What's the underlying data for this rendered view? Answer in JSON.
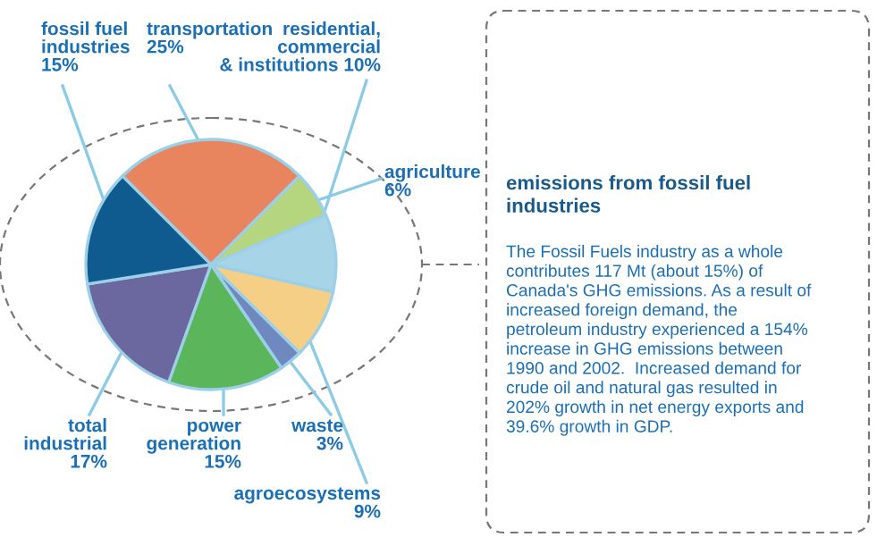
{
  "chart_data": [
    {
      "type": "pie",
      "categories": [
        "transportation",
        "agriculture",
        "residential,\ncommercial\n& institutions",
        "agroecosystems",
        "waste",
        "power\ngeneration",
        "total\nindustrial",
        "fossil fuel\nindustries"
      ],
      "values": [
        25,
        6,
        10,
        9,
        3,
        15,
        17,
        15
      ],
      "value_labels": [
        "25%",
        "6%",
        "10%",
        "9%",
        "3%",
        "15%",
        "17%",
        "15%"
      ],
      "colors": [
        "#e8845e",
        "#b5d67e",
        "#a8d4e8",
        "#f5cf86",
        "#6f88c0",
        "#5bb55a",
        "#6b68a0",
        "#0f5b8f"
      ]
    },
    {
      "type": "other",
      "title": "emissions from fossil fuel\nindustries",
      "annotations": [
        "The Fossil Fuels industry as a whole\ncontributes 117 Mt (about 15%) of\nCanada's GHG emissions. As a result of\nincreased foreign demand, the\npetroleum industry experienced a 154%\nincrease in GHG emissions between\n1990 and 2002.  Increased demand for\ncrude oil and natural gas resulted in\n202% growth in net energy exports and\n39.6% growth in GDP."
      ]
    }
  ]
}
